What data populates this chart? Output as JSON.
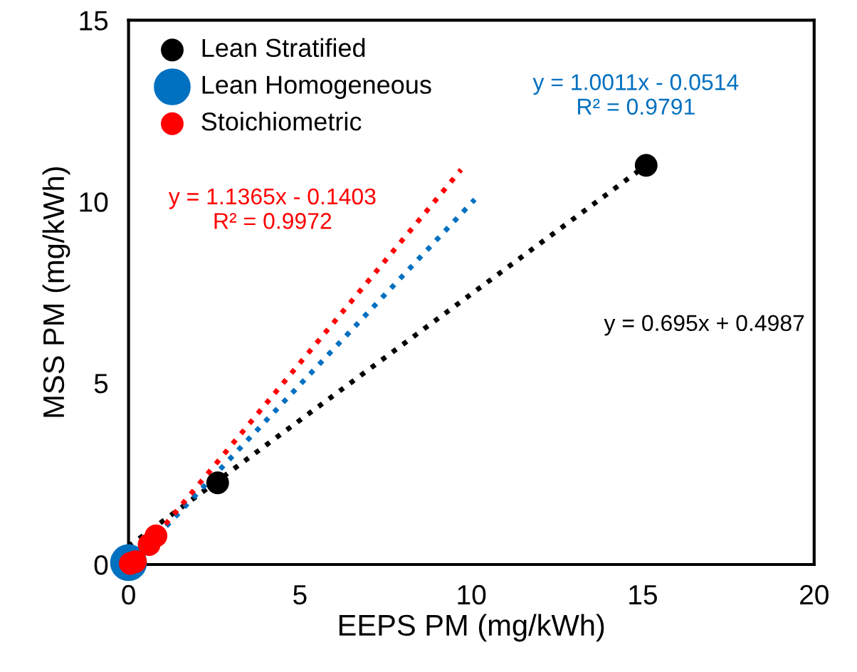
{
  "chart_data": {
    "type": "scatter",
    "xlabel": "EEPS PM (mg/kWh)",
    "ylabel": "MSS PM (mg/kWh)",
    "xlim": [
      0,
      20
    ],
    "ylim": [
      0,
      15
    ],
    "xticks": [
      0,
      5,
      10,
      15,
      20
    ],
    "yticks": [
      0,
      5,
      10,
      15
    ],
    "grid": false,
    "legend": "top left",
    "marker": "circle",
    "series": [
      {
        "name": "Lean Stratified",
        "color": "#000000",
        "x": [
          2.6,
          15.1
        ],
        "values": [
          2.25,
          11.0
        ]
      },
      {
        "name": "Lean Homogeneous",
        "color": "#0070c0",
        "x": [
          0.0
        ],
        "values": [
          0.05
        ]
      },
      {
        "name": "Stoichiometric",
        "color": "#ff0000",
        "x": [
          0.05,
          0.2,
          0.6,
          0.8
        ],
        "values": [
          0.03,
          0.08,
          0.55,
          0.79
        ]
      },
      {
        "type": "line",
        "line_style": "dotted",
        "marker": "none",
        "color": "#000000",
        "x": [
          0.0,
          15.1
        ],
        "values": [
          0.5,
          11.0
        ]
      },
      {
        "type": "line",
        "line_style": "dotted",
        "marker": "none",
        "color": "#0070c0",
        "x": [
          0.05,
          10.1
        ],
        "values": [
          0.0,
          10.06
        ]
      },
      {
        "type": "line",
        "line_style": "dotted",
        "marker": "none",
        "color": "#ff0000",
        "x": [
          0.1,
          9.7
        ],
        "values": [
          0.0,
          10.88
        ]
      }
    ],
    "annotations": [
      "y = 0.695x + 0.4987",
      "y = 1.0011x - 0.0514\nR² = 0.9791",
      "y = 1.1365x - 0.1403\nR² = 0.9972"
    ]
  }
}
